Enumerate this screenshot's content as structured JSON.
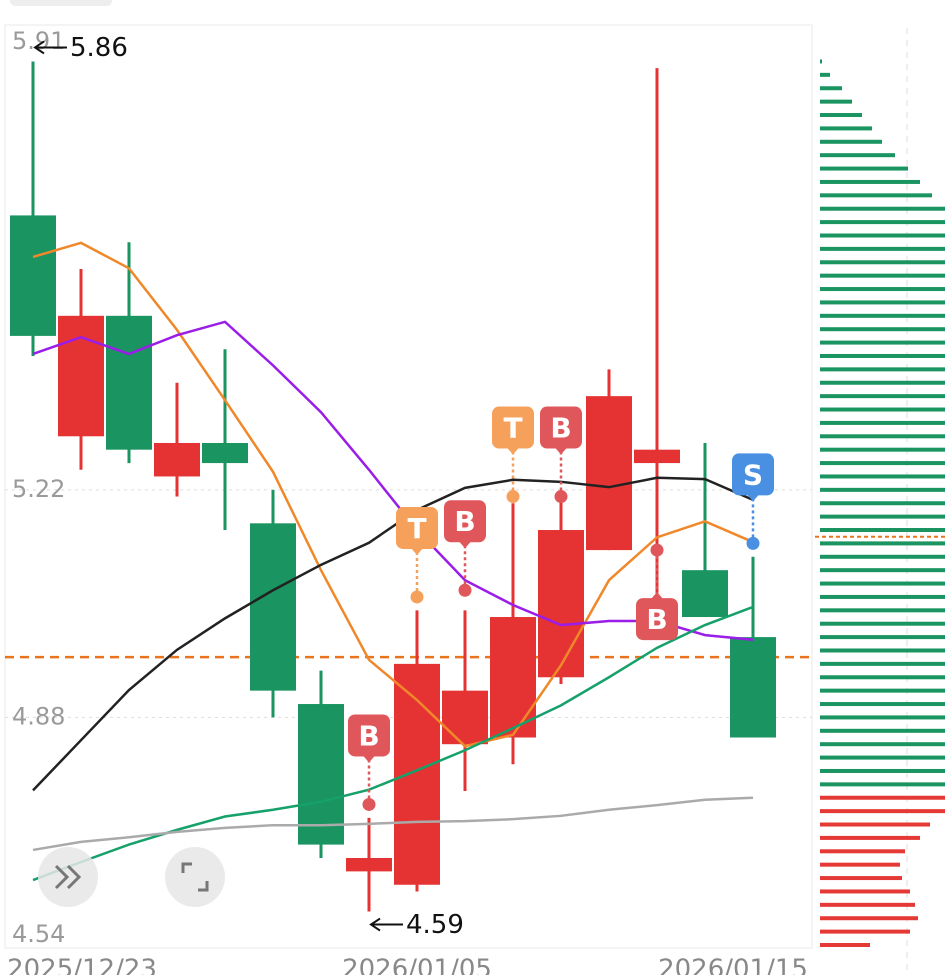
{
  "chart_data": {
    "type": "candlestick",
    "categories": [
      "2025/12/23",
      null,
      null,
      null,
      null,
      null,
      null,
      null,
      "2026/01/05",
      null,
      null,
      null,
      null,
      null,
      null,
      "2026/01/15"
    ],
    "open": [
      5.63,
      5.3,
      5.48,
      5.24,
      5.29,
      5.17,
      4.9,
      4.65,
      4.63,
      4.84,
      4.85,
      4.94,
      5.13,
      5.26,
      5.1,
      5.0
    ],
    "high": [
      5.86,
      5.55,
      5.59,
      5.38,
      5.43,
      5.22,
      4.95,
      4.73,
      5.04,
      5.04,
      5.2,
      5.21,
      5.4,
      5.85,
      5.29,
      5.12
    ],
    "low": [
      5.42,
      5.25,
      5.26,
      5.21,
      5.16,
      4.88,
      4.67,
      4.59,
      4.62,
      4.77,
      4.81,
      4.93,
      5.13,
      5.06,
      5.03,
      4.85
    ],
    "close": [
      5.45,
      5.48,
      5.28,
      5.29,
      5.26,
      4.92,
      4.69,
      4.67,
      4.96,
      4.92,
      5.03,
      5.16,
      5.36,
      5.28,
      5.03,
      4.85
    ],
    "up_color": "#e53333",
    "down_color": "#1a9461",
    "ylim": [
      4.54,
      5.91
    ],
    "yticks": [
      5.91,
      5.22,
      4.88,
      4.54
    ],
    "grid": true,
    "moving_averages": [
      {
        "color": "#f0882a",
        "values": [
          5.568,
          5.589,
          5.551,
          5.459,
          5.354,
          5.247,
          5.1,
          4.966,
          4.906,
          4.837,
          4.854,
          4.958,
          5.085,
          5.149,
          5.173,
          5.142
        ]
      },
      {
        "color": "#9a1de8",
        "values": [
          5.423,
          5.448,
          5.423,
          5.451,
          5.471,
          5.406,
          5.336,
          5.25,
          5.16,
          5.085,
          5.048,
          5.018,
          5.024,
          5.024,
          5.003,
          4.996
        ]
      },
      {
        "color": "#222222",
        "values": [
          4.771,
          4.846,
          4.921,
          4.981,
          5.028,
          5.07,
          5.108,
          5.141,
          5.19,
          5.223,
          5.235,
          5.232,
          5.224,
          5.238,
          5.236,
          5.205
        ]
      },
      {
        "color": "#16a06a",
        "values": [
          4.637,
          4.664,
          4.69,
          4.712,
          4.732,
          4.742,
          4.754,
          4.772,
          4.801,
          4.831,
          4.864,
          4.898,
          4.94,
          4.984,
          5.018,
          5.045
        ]
      },
      {
        "color": "#aaaaaa",
        "values": [
          4.682,
          4.694,
          4.701,
          4.709,
          4.715,
          4.719,
          4.719,
          4.721,
          4.724,
          4.725,
          4.728,
          4.733,
          4.742,
          4.749,
          4.757,
          4.76
        ]
      }
    ],
    "signals": [
      {
        "label": "B",
        "index": 7,
        "value": 4.75
      },
      {
        "label": "T",
        "index": 8,
        "value": 5.06
      },
      {
        "label": "B",
        "index": 9,
        "value": 5.07
      },
      {
        "label": "T",
        "index": 10,
        "value": 5.21
      },
      {
        "label": "B",
        "index": 11,
        "value": 5.21
      },
      {
        "label": "B",
        "index": 13,
        "value": 5.13,
        "placement": "below"
      },
      {
        "label": "S",
        "index": 15,
        "value": 5.14
      }
    ],
    "signal_colors": {
      "T": "#f5a15c",
      "B": "#e0575b",
      "S": "#4a90e2"
    },
    "current_price": 4.97,
    "current_price_color": "#e8741e",
    "volume_profile": {
      "prices": [
        5.86,
        5.84,
        5.82,
        5.8,
        5.78,
        5.76,
        5.74,
        5.72,
        5.7,
        5.68,
        5.66,
        5.64,
        5.62,
        5.6,
        5.58,
        5.56,
        5.54,
        5.52,
        5.5,
        5.48,
        5.46,
        5.44,
        5.42,
        5.4,
        5.38,
        5.36,
        5.34,
        5.32,
        5.3,
        5.28,
        5.26,
        5.24,
        5.22,
        5.2,
        5.18,
        5.16,
        5.14,
        5.12,
        5.1,
        5.08,
        5.06,
        5.04,
        5.02,
        5.0,
        4.98,
        4.96,
        4.94,
        4.92,
        4.9,
        4.88,
        4.86,
        4.84,
        4.82,
        4.8,
        4.78,
        4.76,
        4.74,
        4.72,
        4.7,
        4.68,
        4.66,
        4.64,
        4.62,
        4.6,
        4.58,
        4.56,
        4.54
      ],
      "values": [
        2,
        10,
        22,
        32,
        42,
        52,
        62,
        75,
        88,
        100,
        112,
        125,
        125,
        125,
        125,
        125,
        125,
        125,
        125,
        125,
        125,
        125,
        125,
        125,
        125,
        125,
        125,
        125,
        125,
        125,
        125,
        125,
        125,
        125,
        125,
        125,
        125,
        125,
        125,
        125,
        125,
        125,
        125,
        125,
        125,
        125,
        125,
        125,
        125,
        125,
        125,
        125,
        125,
        125,
        125,
        125,
        125,
        110,
        100,
        85,
        80,
        82,
        90,
        95,
        98,
        90,
        50
      ],
      "split": 4.77,
      "color_above": "#1a9461",
      "color_below": "#e53935",
      "marker": 5.15
    }
  }
}
